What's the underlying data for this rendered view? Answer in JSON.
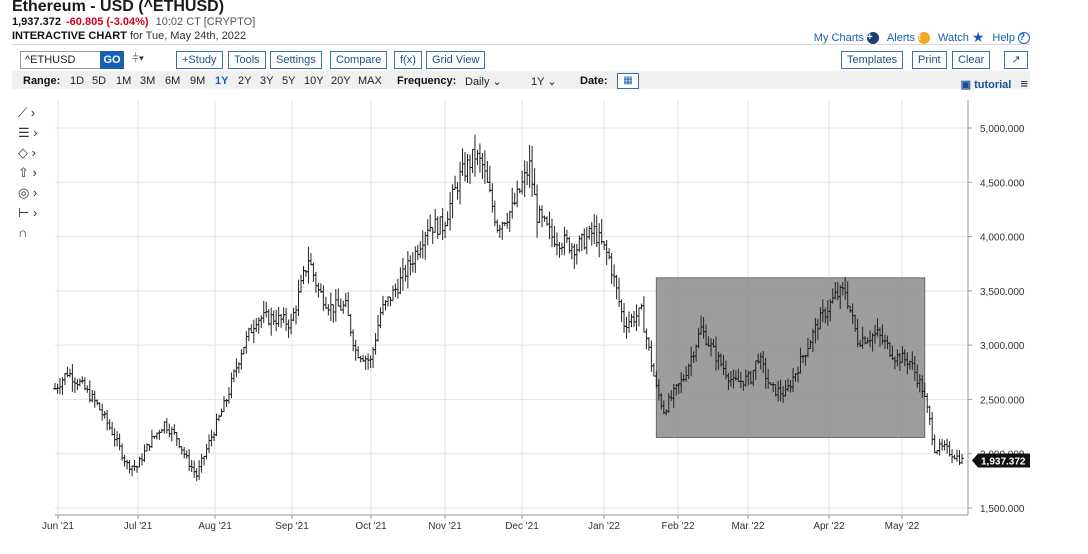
{
  "header": {
    "title": "Ethereum - USD (^ETHUSD)",
    "last": "1,937.372",
    "change": "-60.805 (-3.04%)",
    "time": "10:02 CT [CRYPTO]",
    "chart_label": "INTERACTIVE CHART",
    "chart_date": "for Tue, May 24th, 2022"
  },
  "toplinks": {
    "my_charts": "My Charts",
    "alerts": "Alerts",
    "watch": "Watch",
    "help": "Help"
  },
  "toolbar": {
    "symbol": "^ETHUSD",
    "go": "GO",
    "study": "+Study",
    "tools": "Tools",
    "settings": "Settings",
    "compare": "Compare",
    "fx": "f(x)",
    "grid_view": "Grid View",
    "templates": "Templates",
    "print": "Print",
    "clear": "Clear"
  },
  "range_bar": {
    "range_label": "Range:",
    "ranges": [
      "1D",
      "5D",
      "1M",
      "3M",
      "6M",
      "9M",
      "1Y",
      "2Y",
      "3Y",
      "5Y",
      "10Y",
      "20Y",
      "MAX"
    ],
    "selected_range": "1Y",
    "frequency_label": "Frequency:",
    "frequency": "Daily",
    "period": "1Y",
    "date_label": "Date:",
    "tutorial": "tutorial"
  },
  "colors": {
    "accent": "#1a5fb4",
    "down": "#d0021b",
    "highlight": "#8c8c8c",
    "price_tag": "#111111"
  },
  "chart_data": {
    "type": "bar",
    "style": "OHLC",
    "symbol": "^ETHUSD",
    "frequency": "Daily",
    "ylim": [
      1500,
      5000
    ],
    "y_ticks": [
      "1,500.000",
      "2,000.000",
      "2,500.000",
      "3,000.000",
      "3,500.000",
      "4,000.000",
      "4,500.000",
      "5,000.000"
    ],
    "x_ticks": [
      "Jun '21",
      "Jul '21",
      "Aug '21",
      "Sep '21",
      "Oct '21",
      "Nov '21",
      "Dec '21",
      "Jan '22",
      "Feb '22",
      "Mar '22",
      "Apr '22",
      "May '22"
    ],
    "last_price_label": "1,937.372",
    "last_price": 1937.372,
    "grid": true,
    "highlight_box": {
      "x_start": "Jan 21 '22",
      "x_end": "May 9 '22",
      "y_low": 2150,
      "y_high": 3620
    },
    "anchors": [
      {
        "d": "2021-05-24",
        "v": 2600
      },
      {
        "d": "2021-05-29",
        "v": 2750
      },
      {
        "d": "2021-06-03",
        "v": 2650
      },
      {
        "d": "2021-06-10",
        "v": 2450
      },
      {
        "d": "2021-06-16",
        "v": 2200
      },
      {
        "d": "2021-06-22",
        "v": 1900
      },
      {
        "d": "2021-06-26",
        "v": 1880
      },
      {
        "d": "2021-07-01",
        "v": 2100
      },
      {
        "d": "2021-07-07",
        "v": 2280
      },
      {
        "d": "2021-07-12",
        "v": 2150
      },
      {
        "d": "2021-07-16",
        "v": 1950
      },
      {
        "d": "2021-07-20",
        "v": 1800
      },
      {
        "d": "2021-07-25",
        "v": 2100
      },
      {
        "d": "2021-08-01",
        "v": 2500
      },
      {
        "d": "2021-08-07",
        "v": 2950
      },
      {
        "d": "2021-08-13",
        "v": 3250
      },
      {
        "d": "2021-08-20",
        "v": 3250
      },
      {
        "d": "2021-08-27",
        "v": 3200
      },
      {
        "d": "2021-09-03",
        "v": 3800
      },
      {
        "d": "2021-09-07",
        "v": 3500
      },
      {
        "d": "2021-09-12",
        "v": 3350
      },
      {
        "d": "2021-09-18",
        "v": 3350
      },
      {
        "d": "2021-09-22",
        "v": 2950
      },
      {
        "d": "2021-09-28",
        "v": 2850
      },
      {
        "d": "2021-10-02",
        "v": 3300
      },
      {
        "d": "2021-10-09",
        "v": 3550
      },
      {
        "d": "2021-10-15",
        "v": 3800
      },
      {
        "d": "2021-10-21",
        "v": 4100
      },
      {
        "d": "2021-10-27",
        "v": 4100
      },
      {
        "d": "2021-11-03",
        "v": 4550
      },
      {
        "d": "2021-11-09",
        "v": 4750
      },
      {
        "d": "2021-11-12",
        "v": 4650
      },
      {
        "d": "2021-11-18",
        "v": 4100
      },
      {
        "d": "2021-11-24",
        "v": 4250
      },
      {
        "d": "2021-12-01",
        "v": 4650
      },
      {
        "d": "2021-12-04",
        "v": 4200
      },
      {
        "d": "2021-12-10",
        "v": 4000
      },
      {
        "d": "2021-12-15",
        "v": 3950
      },
      {
        "d": "2021-12-20",
        "v": 3900
      },
      {
        "d": "2021-12-27",
        "v": 4050
      },
      {
        "d": "2022-01-02",
        "v": 3800
      },
      {
        "d": "2022-01-08",
        "v": 3200
      },
      {
        "d": "2022-01-15",
        "v": 3300
      },
      {
        "d": "2022-01-21",
        "v": 2600
      },
      {
        "d": "2022-01-24",
        "v": 2400
      },
      {
        "d": "2022-02-01",
        "v": 2700
      },
      {
        "d": "2022-02-08",
        "v": 3150
      },
      {
        "d": "2022-02-14",
        "v": 2900
      },
      {
        "d": "2022-02-21",
        "v": 2650
      },
      {
        "d": "2022-02-28",
        "v": 2700
      },
      {
        "d": "2022-03-03",
        "v": 2900
      },
      {
        "d": "2022-03-08",
        "v": 2600
      },
      {
        "d": "2022-03-14",
        "v": 2550
      },
      {
        "d": "2022-03-20",
        "v": 2850
      },
      {
        "d": "2022-03-27",
        "v": 3200
      },
      {
        "d": "2022-04-03",
        "v": 3450
      },
      {
        "d": "2022-04-07",
        "v": 3500
      },
      {
        "d": "2022-04-12",
        "v": 3050
      },
      {
        "d": "2022-04-20",
        "v": 3100
      },
      {
        "d": "2022-04-27",
        "v": 2900
      },
      {
        "d": "2022-05-03",
        "v": 2850
      },
      {
        "d": "2022-05-08",
        "v": 2600
      },
      {
        "d": "2022-05-11",
        "v": 2300
      },
      {
        "d": "2022-05-13",
        "v": 2050
      },
      {
        "d": "2022-05-17",
        "v": 2050
      },
      {
        "d": "2022-05-24",
        "v": 1937
      }
    ]
  }
}
